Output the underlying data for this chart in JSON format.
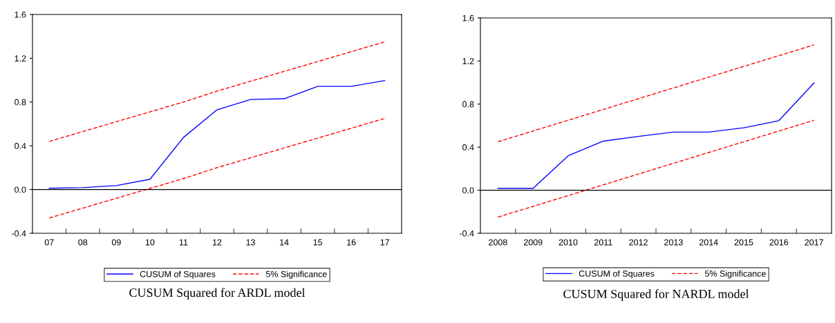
{
  "chart_data": [
    {
      "type": "line",
      "categories": [
        "07",
        "08",
        "09",
        "10",
        "11",
        "12",
        "13",
        "14",
        "15",
        "16",
        "17"
      ],
      "ylim": [
        -0.4,
        1.6
      ],
      "yticks": [
        {
          "value": -0.4,
          "label": "-0.4"
        },
        {
          "value": 0,
          "label": "0.0"
        },
        {
          "value": 0.4,
          "label": "0.4"
        },
        {
          "value": 0.8,
          "label": "0.8"
        },
        {
          "value": 1.2,
          "label": "1.2"
        },
        {
          "value": 1.6,
          "label": "1.6"
        }
      ],
      "legend": "bottom",
      "grid": false,
      "ref_lines": [
        {
          "axis": "y",
          "value": 0,
          "color": "#000000",
          "line_style": "solid"
        }
      ],
      "annotations": [
        "CUSUM Squared for ARDL model"
      ],
      "series": [
        {
          "name": "CUSUM of Squares",
          "color": "#0000ff",
          "line_style": "solid",
          "values": [
            0.012,
            0.017,
            0.036,
            0.094,
            0.476,
            0.729,
            0.823,
            0.83,
            0.943,
            0.943,
            0.996
          ]
        },
        {
          "name": "5% Significance",
          "color": "#ff0000",
          "line_style": "dashed",
          "values": [
            0.44,
            0.53,
            0.62,
            0.71,
            0.8,
            0.9,
            0.99,
            1.08,
            1.17,
            1.26,
            1.35
          ]
        },
        {
          "color": "#ff0000",
          "line_style": "dashed",
          "values": [
            -0.26,
            -0.17,
            -0.08,
            0.01,
            0.1,
            0.2,
            0.29,
            0.38,
            0.47,
            0.56,
            0.65
          ]
        }
      ]
    },
    {
      "type": "line",
      "categories": [
        "2008",
        "2009",
        "2010",
        "2011",
        "2012",
        "2013",
        "2014",
        "2015",
        "2016",
        "2017"
      ],
      "ylim": [
        -0.4,
        1.6
      ],
      "yticks": [
        {
          "value": -0.4,
          "label": "-0.4"
        },
        {
          "value": 0,
          "label": "0.0"
        },
        {
          "value": 0.4,
          "label": "0.4"
        },
        {
          "value": 0.8,
          "label": "0.8"
        },
        {
          "value": 1.2,
          "label": "1.2"
        },
        {
          "value": 1.6,
          "label": "1.6"
        }
      ],
      "legend": "bottom",
      "grid": false,
      "ref_lines": [
        {
          "axis": "y",
          "value": 0,
          "color": "#000000",
          "line_style": "solid"
        }
      ],
      "annotations": [
        "CUSUM Squared for NARDL model"
      ],
      "series": [
        {
          "name": "CUSUM of Squares",
          "color": "#0000ff",
          "line_style": "solid",
          "values": [
            0.017,
            0.017,
            0.32,
            0.456,
            0.5,
            0.54,
            0.54,
            0.58,
            0.646,
            0.996
          ]
        },
        {
          "name": "5% Significance",
          "color": "#ff0000",
          "line_style": "dashed",
          "values": [
            0.45,
            0.55,
            0.65,
            0.75,
            0.85,
            0.95,
            1.05,
            1.15,
            1.25,
            1.35
          ]
        },
        {
          "color": "#ff0000",
          "line_style": "dashed",
          "values": [
            -0.25,
            -0.15,
            -0.05,
            0.05,
            0.15,
            0.25,
            0.35,
            0.45,
            0.55,
            0.65
          ]
        }
      ]
    }
  ]
}
